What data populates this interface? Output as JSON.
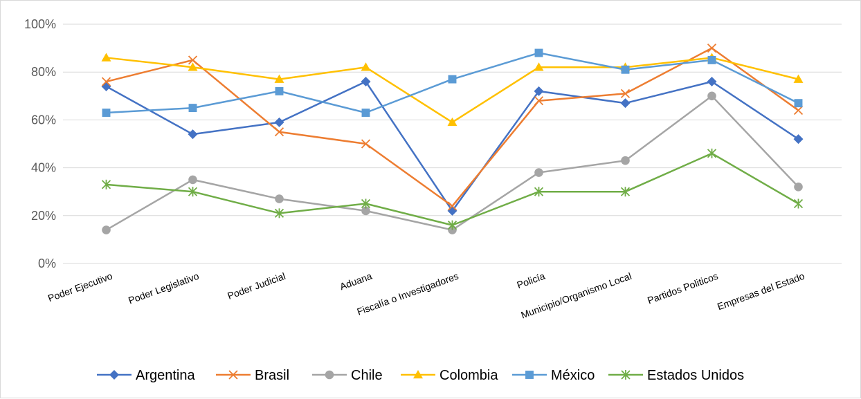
{
  "chart_data": {
    "type": "line",
    "title": "",
    "xlabel": "",
    "ylabel": "",
    "categories": [
      "Poder Ejecutivo",
      "Poder Legislativo",
      "Poder Judicial",
      "Aduana",
      "Fiscalía o Investigadores",
      "Policía",
      "Municipio/Organismo Local",
      "Partidos Politicos",
      "Empresas del Estado"
    ],
    "y_ticks": [
      "0%",
      "20%",
      "40%",
      "60%",
      "80%",
      "100%"
    ],
    "ylim": [
      0,
      100
    ],
    "grid": true,
    "legend_position": "bottom",
    "series": [
      {
        "name": "Argentina",
        "color": "#4472C4",
        "marker": "diamond",
        "values": [
          74,
          54,
          59,
          76,
          22,
          72,
          67,
          76,
          52
        ]
      },
      {
        "name": "Brasil",
        "color": "#ED7D31",
        "marker": "x",
        "values": [
          76,
          85,
          55,
          50,
          24,
          68,
          71,
          90,
          64
        ]
      },
      {
        "name": "Chile",
        "color": "#A5A5A5",
        "marker": "circle",
        "values": [
          14,
          35,
          27,
          22,
          14,
          38,
          43,
          70,
          32
        ]
      },
      {
        "name": "Colombia",
        "color": "#FFC000",
        "marker": "triangle",
        "values": [
          86,
          82,
          77,
          82,
          59,
          82,
          82,
          86,
          77
        ]
      },
      {
        "name": "México",
        "color": "#5B9BD5",
        "marker": "square",
        "values": [
          63,
          65,
          72,
          63,
          77,
          88,
          81,
          85,
          67
        ]
      },
      {
        "name": "Estados Unidos",
        "color": "#70AD47",
        "marker": "star",
        "values": [
          33,
          30,
          21,
          25,
          16,
          30,
          30,
          46,
          25
        ]
      }
    ]
  }
}
